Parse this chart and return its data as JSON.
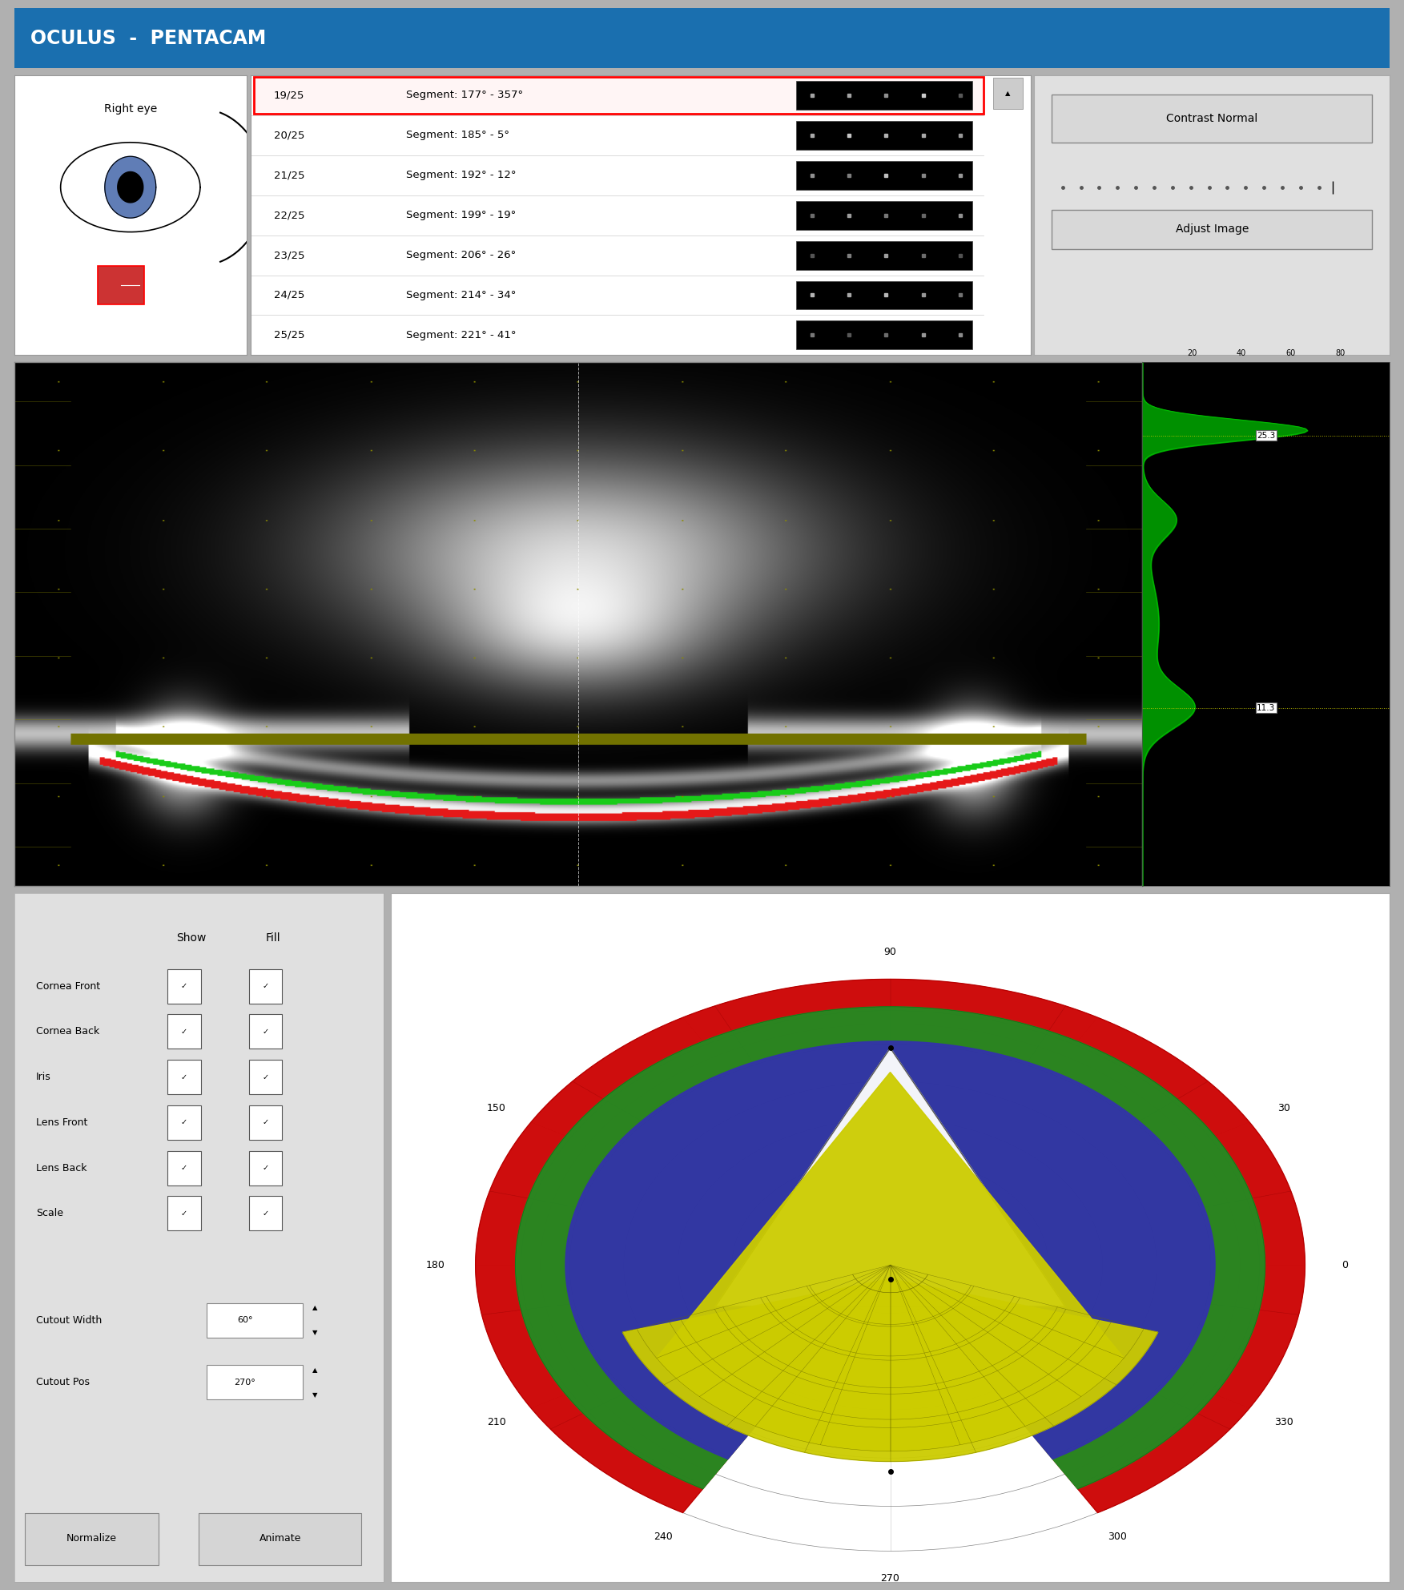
{
  "title": "OCULUS  -  PENTACAM",
  "title_bg": "#1a6faf",
  "title_fg": "#ffffff",
  "bg_color": "#b0b0b0",
  "panel_bg": "#e0e0e0",
  "white": "#ffffff",
  "segment_rows": [
    {
      "num": "19/25",
      "seg": "Segment: 177° - 357°",
      "selected": true
    },
    {
      "num": "20/25",
      "seg": "Segment: 185° - 5°",
      "selected": false
    },
    {
      "num": "21/25",
      "seg": "Segment: 192° - 12°",
      "selected": false
    },
    {
      "num": "22/25",
      "seg": "Segment: 199° - 19°",
      "selected": false
    },
    {
      "num": "23/25",
      "seg": "Segment: 206° - 26°",
      "selected": false
    },
    {
      "num": "24/25",
      "seg": "Segment: 214° - 34°",
      "selected": false
    },
    {
      "num": "25/25",
      "seg": "Segment: 221° - 41°",
      "selected": false
    }
  ],
  "contrast_label": "Contrast Normal",
  "adjust_label": "Adjust Image",
  "depth_values": [
    25.3,
    11.3
  ],
  "depth_axis_ticks": [
    20,
    40,
    60,
    80
  ],
  "labels_panel": [
    "Cornea Front",
    "Cornea Back",
    "Iris",
    "Lens Front",
    "Lens Back",
    "Scale"
  ],
  "cutout_width": "60°",
  "cutout_pos": "270°",
  "normalize_btn": "Normalize",
  "animate_btn": "Animate",
  "colors_3d": {
    "cornea_front": "#cc0000",
    "cornea_back": "#228B22",
    "iris": "#3333aa",
    "lens_yellow": "#cccc00",
    "white_col": "#ffffff"
  }
}
